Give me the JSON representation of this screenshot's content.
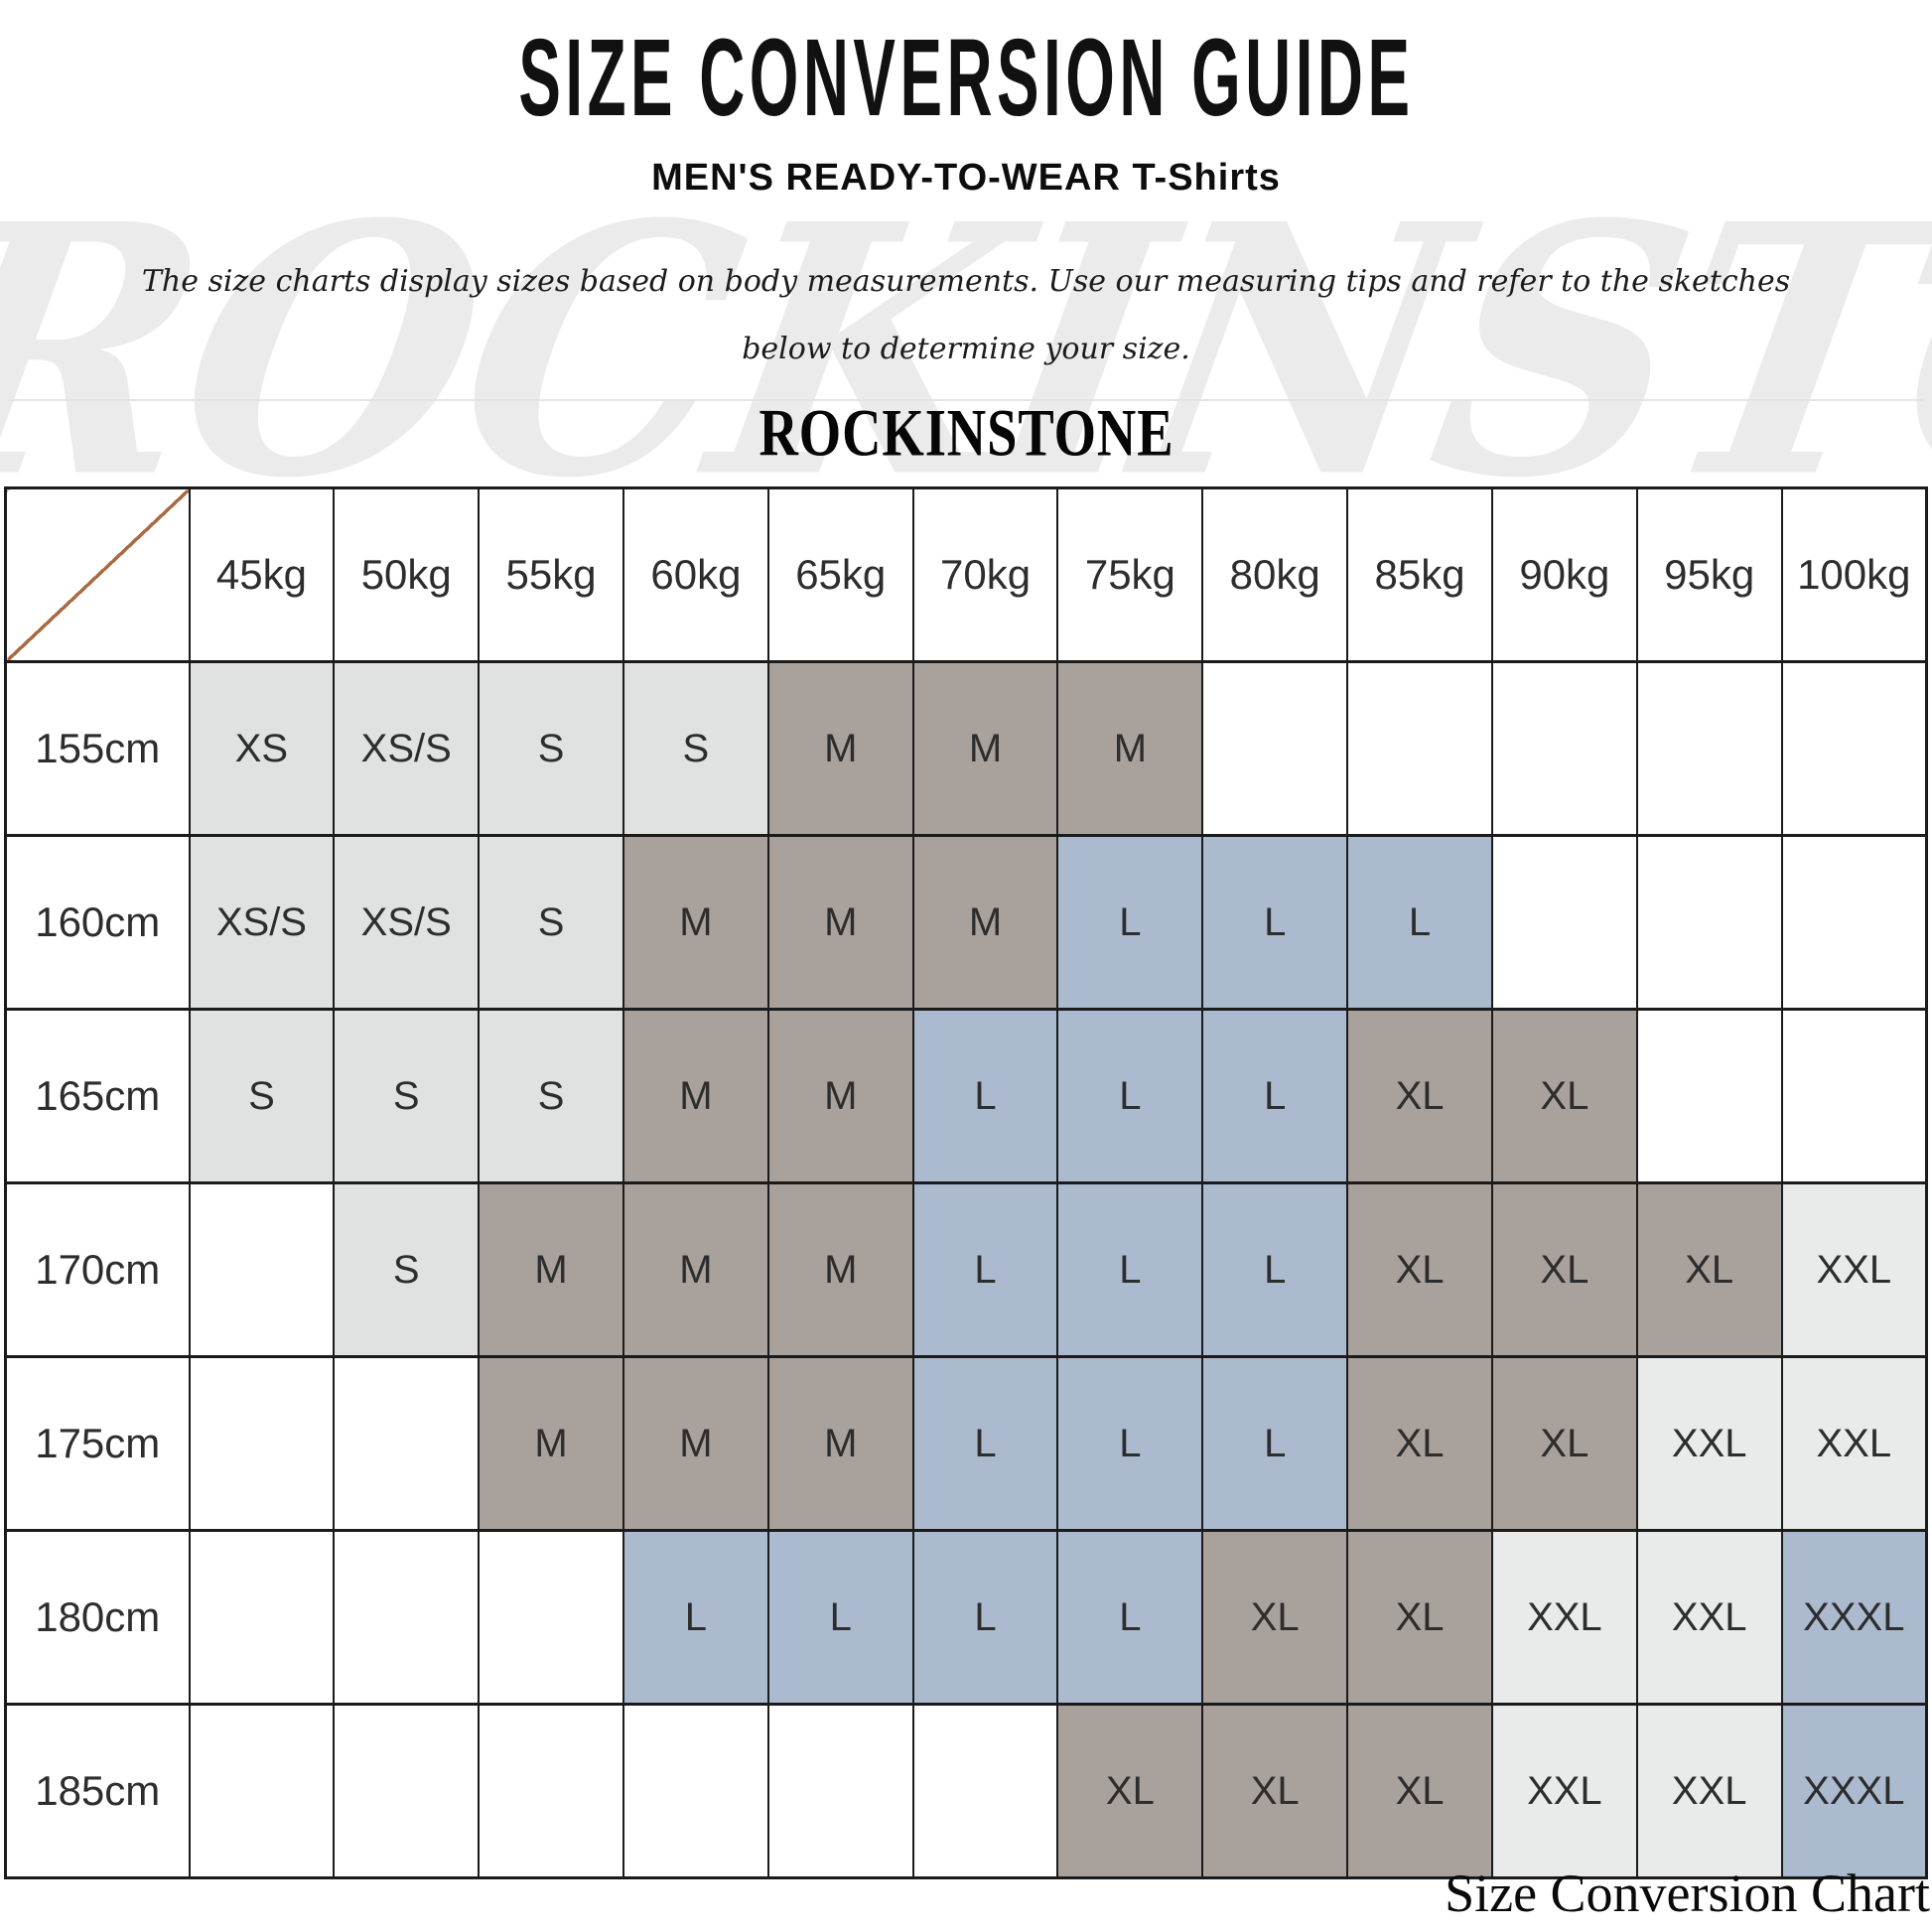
{
  "header": {
    "title": "SIZE CONVERSION GUIDE",
    "subtitle": "MEN'S READY-TO-WEAR T-Shirts",
    "description_line1": "The size charts display sizes based on body measurements.  Use our measuring tips and refer to the sketches",
    "description_line2": "below to determine your size.",
    "brand": "ROCKINSTONE"
  },
  "watermark_text": "ROCKINSTONE",
  "footer": {
    "caption": "Size Conversion Chart"
  },
  "colors": {
    "cell_light": "#e0e1e1",
    "cell_xlight": "#e9eaea",
    "cell_gray": "#a8a19c",
    "cell_blue": "#abbacf",
    "grid_line": "#1b1b1b",
    "diagonal_line": "#a96a41",
    "watermark": "#ebebeb",
    "cell_text": "#2d2d2d"
  },
  "chart_data": {
    "type": "table",
    "title": "SIZE CONVERSION GUIDE",
    "subtitle": "MEN'S READY-TO-WEAR T-Shirts",
    "column_headers": [
      "45kg",
      "50kg",
      "55kg",
      "60kg",
      "65kg",
      "70kg",
      "75kg",
      "80kg",
      "85kg",
      "90kg",
      "95kg",
      "100kg"
    ],
    "row_headers": [
      "155cm",
      "160cm",
      "165cm",
      "170cm",
      "175cm",
      "180cm",
      "185cm"
    ],
    "cells": [
      [
        [
          "XS",
          "light"
        ],
        [
          "XS/S",
          "light"
        ],
        [
          "S",
          "light"
        ],
        [
          "S",
          "light"
        ],
        [
          "M",
          "gray"
        ],
        [
          "M",
          "gray"
        ],
        [
          "M",
          "gray"
        ],
        [
          "",
          "white"
        ],
        [
          "",
          "white"
        ],
        [
          "",
          "white"
        ],
        [
          "",
          "white"
        ],
        [
          "",
          "white"
        ]
      ],
      [
        [
          "XS/S",
          "light"
        ],
        [
          "XS/S",
          "light"
        ],
        [
          "S",
          "light"
        ],
        [
          "M",
          "gray"
        ],
        [
          "M",
          "gray"
        ],
        [
          "M",
          "gray"
        ],
        [
          "L",
          "blue"
        ],
        [
          "L",
          "blue"
        ],
        [
          "L",
          "blue"
        ],
        [
          "",
          "white"
        ],
        [
          "",
          "white"
        ],
        [
          "",
          "white"
        ]
      ],
      [
        [
          "S",
          "light"
        ],
        [
          "S",
          "light"
        ],
        [
          "S",
          "light"
        ],
        [
          "M",
          "gray"
        ],
        [
          "M",
          "gray"
        ],
        [
          "L",
          "blue"
        ],
        [
          "L",
          "blue"
        ],
        [
          "L",
          "blue"
        ],
        [
          "XL",
          "gray"
        ],
        [
          "XL",
          "gray"
        ],
        [
          "",
          "white"
        ],
        [
          "",
          "white"
        ]
      ],
      [
        [
          "",
          "white"
        ],
        [
          "S",
          "light"
        ],
        [
          "M",
          "gray"
        ],
        [
          "M",
          "gray"
        ],
        [
          "M",
          "gray"
        ],
        [
          "L",
          "blue"
        ],
        [
          "L",
          "blue"
        ],
        [
          "L",
          "blue"
        ],
        [
          "XL",
          "gray"
        ],
        [
          "XL",
          "gray"
        ],
        [
          "XL",
          "gray"
        ],
        [
          "XXL",
          "xlight"
        ]
      ],
      [
        [
          "",
          "white"
        ],
        [
          "",
          "white"
        ],
        [
          "M",
          "gray"
        ],
        [
          "M",
          "gray"
        ],
        [
          "M",
          "gray"
        ],
        [
          "L",
          "blue"
        ],
        [
          "L",
          "blue"
        ],
        [
          "L",
          "blue"
        ],
        [
          "XL",
          "gray"
        ],
        [
          "XL",
          "gray"
        ],
        [
          "XXL",
          "xlight"
        ],
        [
          "XXL",
          "xlight"
        ]
      ],
      [
        [
          "",
          "white"
        ],
        [
          "",
          "white"
        ],
        [
          "",
          "white"
        ],
        [
          "L",
          "blue"
        ],
        [
          "L",
          "blue"
        ],
        [
          "L",
          "blue"
        ],
        [
          "L",
          "blue"
        ],
        [
          "XL",
          "gray"
        ],
        [
          "XL",
          "gray"
        ],
        [
          "XXL",
          "xlight"
        ],
        [
          "XXL",
          "xlight"
        ],
        [
          "XXXL",
          "blue"
        ]
      ],
      [
        [
          "",
          "white"
        ],
        [
          "",
          "white"
        ],
        [
          "",
          "white"
        ],
        [
          "",
          "white"
        ],
        [
          "",
          "white"
        ],
        [
          "",
          "white"
        ],
        [
          "XL",
          "gray"
        ],
        [
          "XL",
          "gray"
        ],
        [
          "XL",
          "gray"
        ],
        [
          "XXL",
          "xlight"
        ],
        [
          "XXL",
          "xlight"
        ],
        [
          "XXXL",
          "blue"
        ]
      ]
    ]
  }
}
